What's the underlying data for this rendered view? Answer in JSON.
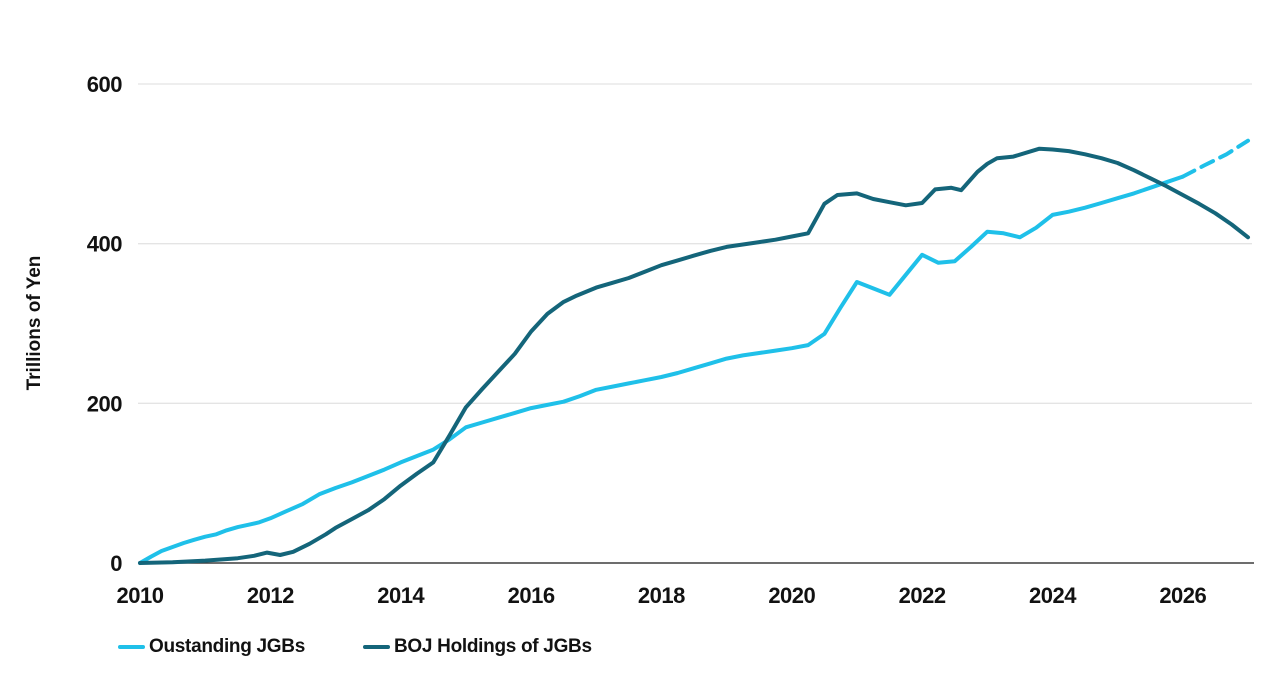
{
  "chart_data": {
    "type": "line",
    "title": "",
    "xlabel": "",
    "ylabel": "Trillions of Yen",
    "xlim": [
      2010,
      2027
    ],
    "ylim": [
      0,
      600
    ],
    "xticks": [
      2010,
      2012,
      2014,
      2016,
      2018,
      2020,
      2022,
      2024,
      2026
    ],
    "yticks": [
      0,
      200,
      400,
      600
    ],
    "grid": "horizontal-only",
    "gridline_color": "#e4e4e4",
    "axis_line_color": "#3d3d3d",
    "legend_position": "bottom-left",
    "series": [
      {
        "name": "Oustanding JGBs",
        "color": "#1fc0e9",
        "line_width": 4,
        "segments": [
          {
            "dashed": false,
            "points": [
              [
                2010,
                0
              ],
              [
                2010.17,
                8
              ],
              [
                2010.33,
                15
              ],
              [
                2010.5,
                20
              ],
              [
                2010.67,
                25
              ],
              [
                2010.83,
                29
              ],
              [
                2011,
                33
              ],
              [
                2011.17,
                36
              ],
              [
                2011.33,
                41
              ],
              [
                2011.5,
                45
              ],
              [
                2011.67,
                48
              ],
              [
                2011.83,
                51
              ],
              [
                2012,
                56
              ],
              [
                2012.25,
                65
              ],
              [
                2012.5,
                74
              ],
              [
                2012.75,
                86
              ],
              [
                2013,
                94
              ],
              [
                2013.25,
                101
              ],
              [
                2013.5,
                109
              ],
              [
                2013.75,
                117
              ],
              [
                2014,
                126
              ],
              [
                2014.25,
                134
              ],
              [
                2014.5,
                142
              ],
              [
                2014.75,
                155
              ],
              [
                2015,
                170
              ],
              [
                2015.25,
                176
              ],
              [
                2015.5,
                182
              ],
              [
                2015.75,
                188
              ],
              [
                2016,
                194
              ],
              [
                2016.25,
                198
              ],
              [
                2016.5,
                202
              ],
              [
                2016.75,
                209
              ],
              [
                2017,
                217
              ],
              [
                2017.25,
                221
              ],
              [
                2017.5,
                225
              ],
              [
                2017.75,
                229
              ],
              [
                2018,
                233
              ],
              [
                2018.25,
                238
              ],
              [
                2018.5,
                244
              ],
              [
                2018.75,
                250
              ],
              [
                2019,
                256
              ],
              [
                2019.25,
                260
              ],
              [
                2019.5,
                263
              ],
              [
                2019.75,
                266
              ],
              [
                2020,
                269
              ],
              [
                2020.25,
                273
              ],
              [
                2020.5,
                287
              ],
              [
                2020.75,
                320
              ],
              [
                2021,
                352
              ],
              [
                2021.25,
                344
              ],
              [
                2021.5,
                336
              ],
              [
                2021.75,
                361
              ],
              [
                2022,
                386
              ],
              [
                2022.25,
                376
              ],
              [
                2022.5,
                378
              ],
              [
                2022.75,
                396
              ],
              [
                2023,
                415
              ],
              [
                2023.25,
                413
              ],
              [
                2023.5,
                408
              ],
              [
                2023.75,
                420
              ],
              [
                2024,
                436
              ],
              [
                2024.25,
                440
              ],
              [
                2024.5,
                445
              ],
              [
                2024.75,
                451
              ],
              [
                2025,
                457
              ],
              [
                2025.25,
                463
              ],
              [
                2025.5,
                470
              ],
              [
                2025.75,
                477
              ],
              [
                2026,
                484
              ]
            ]
          },
          {
            "dashed": true,
            "points": [
              [
                2026,
                484
              ],
              [
                2026.33,
                498
              ],
              [
                2026.67,
                512
              ],
              [
                2027,
                529
              ]
            ]
          }
        ]
      },
      {
        "name": "BOJ Holdings of JGBs",
        "color": "#14657a",
        "line_width": 4,
        "segments": [
          {
            "dashed": false,
            "points": [
              [
                2010,
                0
              ],
              [
                2010.5,
                1
              ],
              [
                2011,
                3
              ],
              [
                2011.5,
                6
              ],
              [
                2011.75,
                9
              ],
              [
                2011.95,
                13
              ],
              [
                2012.15,
                10
              ],
              [
                2012.35,
                14
              ],
              [
                2012.6,
                24
              ],
              [
                2012.85,
                36
              ],
              [
                2013,
                44
              ],
              [
                2013.25,
                55
              ],
              [
                2013.5,
                66
              ],
              [
                2013.75,
                80
              ],
              [
                2014,
                97
              ],
              [
                2014.25,
                112
              ],
              [
                2014.5,
                126
              ],
              [
                2014.75,
                160
              ],
              [
                2015,
                195
              ],
              [
                2015.25,
                218
              ],
              [
                2015.5,
                240
              ],
              [
                2015.75,
                262
              ],
              [
                2016,
                290
              ],
              [
                2016.25,
                312
              ],
              [
                2016.5,
                327
              ],
              [
                2016.7,
                335
              ],
              [
                2017,
                345
              ],
              [
                2017.25,
                351
              ],
              [
                2017.5,
                357
              ],
              [
                2017.75,
                365
              ],
              [
                2018,
                373
              ],
              [
                2018.25,
                379
              ],
              [
                2018.5,
                385
              ],
              [
                2018.75,
                391
              ],
              [
                2019,
                396
              ],
              [
                2019.25,
                399
              ],
              [
                2019.5,
                402
              ],
              [
                2019.75,
                405
              ],
              [
                2020,
                409
              ],
              [
                2020.25,
                413
              ],
              [
                2020.5,
                450
              ],
              [
                2020.7,
                461
              ],
              [
                2021,
                463
              ],
              [
                2021.25,
                456
              ],
              [
                2021.5,
                452
              ],
              [
                2021.75,
                448
              ],
              [
                2022,
                451
              ],
              [
                2022.2,
                468
              ],
              [
                2022.45,
                470
              ],
              [
                2022.6,
                467
              ],
              [
                2022.85,
                490
              ],
              [
                2023,
                500
              ],
              [
                2023.15,
                507
              ],
              [
                2023.4,
                509
              ],
              [
                2023.8,
                519
              ],
              [
                2024,
                518
              ],
              [
                2024.25,
                516
              ],
              [
                2024.5,
                512
              ],
              [
                2024.75,
                507
              ],
              [
                2025,
                501
              ],
              [
                2025.25,
                492
              ],
              [
                2025.5,
                482
              ],
              [
                2025.75,
                472
              ],
              [
                2026,
                461
              ],
              [
                2026.25,
                450
              ],
              [
                2026.5,
                438
              ],
              [
                2026.75,
                424
              ],
              [
                2027,
                408
              ]
            ]
          }
        ]
      }
    ]
  }
}
